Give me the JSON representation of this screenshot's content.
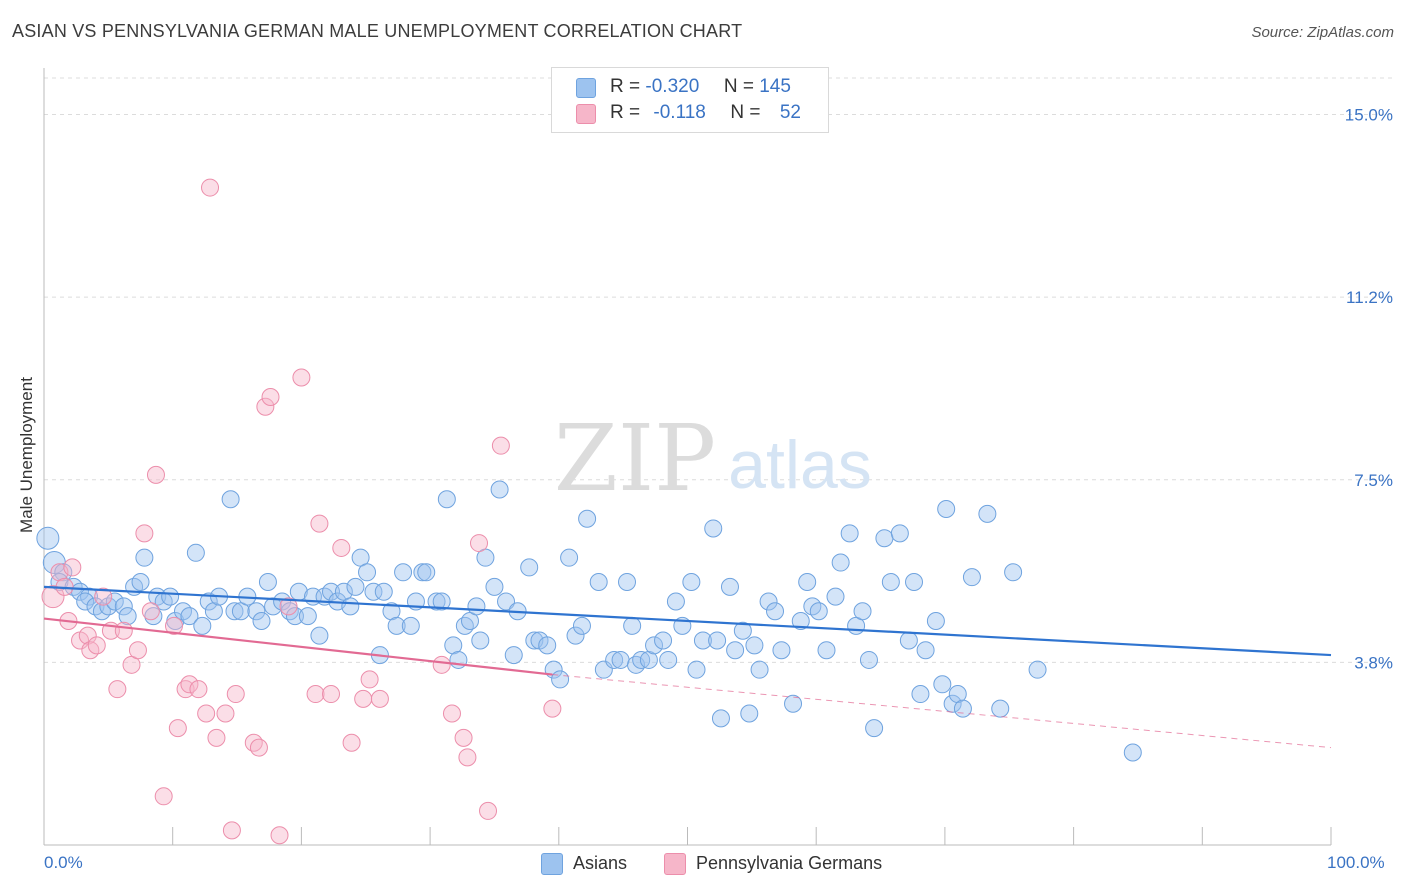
{
  "title": "ASIAN VS PENNSYLVANIA GERMAN MALE UNEMPLOYMENT CORRELATION CHART",
  "source": "Source: ZipAtlas.com",
  "watermark": {
    "zip": "ZIP",
    "atlas": "atlas"
  },
  "legend_top": [
    {
      "r_label": "R =",
      "r_value": "-0.320",
      "n_label": "N =",
      "n_value": "145",
      "color": "#9dc3ef",
      "stroke": "#6fa3df"
    },
    {
      "r_label": "R =",
      "r_value": "-0.118",
      "n_label": "N =",
      "n_value": "52",
      "color": "#f6b6c9",
      "stroke": "#ec8eab"
    }
  ],
  "legend_bottom": [
    {
      "label": "Asians",
      "color": "#9dc3ef",
      "stroke": "#6fa3df"
    },
    {
      "label": "Pennsylvania Germans",
      "color": "#f6b6c9",
      "stroke": "#ec8eab"
    }
  ],
  "x_tick_labels": {
    "min": "0.0%",
    "max": "100.0%"
  },
  "chart_data": {
    "type": "scatter",
    "title": "ASIAN VS PENNSYLVANIA GERMAN MALE UNEMPLOYMENT CORRELATION CHART",
    "xlabel": "",
    "ylabel": "Male Unemployment",
    "xlim": [
      0,
      100
    ],
    "ylim": [
      0,
      15.75
    ],
    "y_ticks": [
      {
        "value": 15.0,
        "label": "15.0%"
      },
      {
        "value": 11.25,
        "label": "11.2%"
      },
      {
        "value": 7.5,
        "label": "7.5%"
      },
      {
        "value": 3.75,
        "label": "3.8%"
      }
    ],
    "grid": true,
    "series": [
      {
        "name": "Asians",
        "color": "#9dc3ef",
        "stroke": "#6fa3df",
        "line_color": "#2f74d0",
        "trend": {
          "x": [
            0,
            100
          ],
          "y": [
            5.3,
            3.9
          ],
          "dashed_to": null
        },
        "points": [
          [
            0.3,
            6.3
          ],
          [
            0.8,
            5.8
          ],
          [
            1.5,
            5.6
          ],
          [
            1.2,
            5.4
          ],
          [
            2.3,
            5.3
          ],
          [
            2.8,
            5.2
          ],
          [
            3.5,
            5.1
          ],
          [
            3.2,
            5.0
          ],
          [
            4.0,
            4.9
          ],
          [
            4.5,
            4.8
          ],
          [
            5.0,
            4.9
          ],
          [
            5.5,
            5.0
          ],
          [
            6.2,
            4.9
          ],
          [
            6.5,
            4.7
          ],
          [
            7.0,
            5.3
          ],
          [
            7.5,
            5.4
          ],
          [
            7.8,
            5.9
          ],
          [
            8.5,
            4.7
          ],
          [
            8.8,
            5.1
          ],
          [
            9.3,
            5.0
          ],
          [
            9.8,
            5.1
          ],
          [
            10.2,
            4.6
          ],
          [
            10.8,
            4.8
          ],
          [
            11.3,
            4.7
          ],
          [
            11.8,
            6.0
          ],
          [
            12.3,
            4.5
          ],
          [
            12.8,
            5.0
          ],
          [
            13.2,
            4.8
          ],
          [
            13.6,
            5.1
          ],
          [
            14.5,
            7.1
          ],
          [
            14.8,
            4.8
          ],
          [
            15.3,
            4.8
          ],
          [
            15.8,
            5.1
          ],
          [
            16.5,
            4.8
          ],
          [
            16.9,
            4.6
          ],
          [
            17.4,
            5.4
          ],
          [
            17.8,
            4.9
          ],
          [
            18.5,
            5.0
          ],
          [
            19.1,
            4.8
          ],
          [
            19.5,
            4.7
          ],
          [
            19.8,
            5.2
          ],
          [
            20.5,
            4.7
          ],
          [
            20.9,
            5.1
          ],
          [
            21.4,
            4.3
          ],
          [
            21.8,
            5.1
          ],
          [
            22.3,
            5.2
          ],
          [
            22.8,
            5.0
          ],
          [
            23.3,
            5.2
          ],
          [
            23.8,
            4.9
          ],
          [
            24.2,
            5.3
          ],
          [
            24.6,
            5.9
          ],
          [
            25.1,
            5.6
          ],
          [
            25.6,
            5.2
          ],
          [
            26.1,
            3.9
          ],
          [
            26.4,
            5.2
          ],
          [
            27.0,
            4.8
          ],
          [
            27.4,
            4.5
          ],
          [
            27.9,
            5.6
          ],
          [
            28.5,
            4.5
          ],
          [
            28.9,
            5.0
          ],
          [
            29.4,
            5.6
          ],
          [
            29.7,
            5.6
          ],
          [
            30.5,
            5.0
          ],
          [
            30.9,
            5.0
          ],
          [
            31.3,
            7.1
          ],
          [
            31.8,
            4.1
          ],
          [
            32.2,
            3.8
          ],
          [
            32.7,
            4.5
          ],
          [
            33.1,
            4.6
          ],
          [
            33.6,
            4.9
          ],
          [
            33.9,
            4.2
          ],
          [
            34.3,
            5.9
          ],
          [
            35.0,
            5.3
          ],
          [
            35.4,
            7.3
          ],
          [
            35.9,
            5.0
          ],
          [
            36.5,
            3.9
          ],
          [
            36.8,
            4.8
          ],
          [
            37.7,
            5.7
          ],
          [
            38.1,
            4.2
          ],
          [
            38.5,
            4.2
          ],
          [
            39.1,
            4.1
          ],
          [
            39.6,
            3.6
          ],
          [
            40.1,
            3.4
          ],
          [
            40.8,
            5.9
          ],
          [
            41.3,
            4.3
          ],
          [
            41.8,
            4.5
          ],
          [
            42.2,
            6.7
          ],
          [
            43.1,
            5.4
          ],
          [
            43.5,
            3.6
          ],
          [
            44.3,
            3.8
          ],
          [
            44.8,
            3.8
          ],
          [
            45.3,
            5.4
          ],
          [
            45.7,
            4.5
          ],
          [
            46.0,
            3.7
          ],
          [
            46.4,
            3.8
          ],
          [
            47.0,
            3.8
          ],
          [
            47.4,
            4.1
          ],
          [
            48.1,
            4.2
          ],
          [
            48.5,
            3.8
          ],
          [
            49.1,
            5.0
          ],
          [
            49.6,
            4.5
          ],
          [
            50.3,
            5.4
          ],
          [
            50.7,
            3.6
          ],
          [
            51.2,
            4.2
          ],
          [
            52.0,
            6.5
          ],
          [
            52.3,
            4.2
          ],
          [
            52.6,
            2.6
          ],
          [
            53.3,
            5.3
          ],
          [
            53.7,
            4.0
          ],
          [
            54.3,
            4.4
          ],
          [
            54.8,
            2.7
          ],
          [
            55.2,
            4.1
          ],
          [
            55.6,
            3.6
          ],
          [
            56.3,
            5.0
          ],
          [
            56.8,
            4.8
          ],
          [
            57.3,
            4.0
          ],
          [
            58.2,
            2.9
          ],
          [
            58.8,
            4.6
          ],
          [
            59.3,
            5.4
          ],
          [
            59.7,
            4.9
          ],
          [
            60.2,
            4.8
          ],
          [
            60.8,
            4.0
          ],
          [
            61.5,
            5.1
          ],
          [
            61.9,
            5.8
          ],
          [
            62.6,
            6.4
          ],
          [
            63.1,
            4.5
          ],
          [
            63.6,
            4.8
          ],
          [
            64.1,
            3.8
          ],
          [
            64.5,
            2.4
          ],
          [
            65.3,
            6.3
          ],
          [
            65.8,
            5.4
          ],
          [
            66.5,
            6.4
          ],
          [
            67.2,
            4.2
          ],
          [
            67.6,
            5.4
          ],
          [
            68.1,
            3.1
          ],
          [
            68.5,
            4.0
          ],
          [
            69.3,
            4.6
          ],
          [
            69.8,
            3.3
          ],
          [
            70.1,
            6.9
          ],
          [
            70.6,
            2.9
          ],
          [
            71.0,
            3.1
          ],
          [
            71.4,
            2.8
          ],
          [
            72.1,
            5.5
          ],
          [
            73.3,
            6.8
          ],
          [
            74.3,
            2.8
          ],
          [
            75.3,
            5.6
          ],
          [
            77.2,
            3.6
          ],
          [
            84.6,
            1.9
          ]
        ],
        "large_points": [
          [
            0.3,
            6.3
          ],
          [
            0.8,
            5.8
          ]
        ]
      },
      {
        "name": "Pennsylvania Germans",
        "color": "#f6b6c9",
        "stroke": "#ec8eab",
        "line_color": "#e26a93",
        "trend": {
          "x": [
            0,
            39.5
          ],
          "y": [
            4.65,
            3.5
          ],
          "dashed_to": {
            "x": 100,
            "y": 2.0
          }
        },
        "points": [
          [
            0.7,
            5.1
          ],
          [
            1.2,
            5.6
          ],
          [
            1.6,
            5.3
          ],
          [
            2.2,
            5.7
          ],
          [
            1.9,
            4.6
          ],
          [
            2.8,
            4.2
          ],
          [
            3.4,
            4.3
          ],
          [
            3.6,
            4.0
          ],
          [
            4.1,
            4.1
          ],
          [
            4.6,
            5.1
          ],
          [
            5.2,
            4.4
          ],
          [
            5.7,
            3.2
          ],
          [
            6.2,
            4.4
          ],
          [
            6.8,
            3.7
          ],
          [
            7.3,
            4.0
          ],
          [
            7.8,
            6.4
          ],
          [
            8.3,
            4.8
          ],
          [
            8.7,
            7.6
          ],
          [
            9.3,
            1.0
          ],
          [
            10.1,
            4.5
          ],
          [
            10.4,
            2.4
          ],
          [
            11.0,
            3.2
          ],
          [
            11.3,
            3.3
          ],
          [
            12.0,
            3.2
          ],
          [
            12.6,
            2.7
          ],
          [
            12.9,
            13.5
          ],
          [
            13.4,
            2.2
          ],
          [
            14.1,
            2.7
          ],
          [
            14.6,
            0.3
          ],
          [
            14.9,
            3.1
          ],
          [
            16.3,
            2.1
          ],
          [
            16.7,
            2.0
          ],
          [
            17.2,
            9.0
          ],
          [
            17.6,
            9.2
          ],
          [
            18.3,
            0.2
          ],
          [
            19.0,
            4.9
          ],
          [
            20.0,
            9.6
          ],
          [
            21.1,
            3.1
          ],
          [
            21.4,
            6.6
          ],
          [
            22.3,
            3.1
          ],
          [
            23.1,
            6.1
          ],
          [
            23.9,
            2.1
          ],
          [
            24.8,
            3.0
          ],
          [
            25.3,
            3.4
          ],
          [
            26.1,
            3.0
          ],
          [
            30.9,
            3.7
          ],
          [
            31.7,
            2.7
          ],
          [
            32.6,
            2.2
          ],
          [
            32.9,
            1.8
          ],
          [
            33.8,
            6.2
          ],
          [
            34.5,
            0.7
          ],
          [
            35.5,
            8.2
          ],
          [
            39.5,
            2.8
          ]
        ],
        "large_points": [
          [
            0.7,
            5.1
          ]
        ]
      }
    ]
  }
}
